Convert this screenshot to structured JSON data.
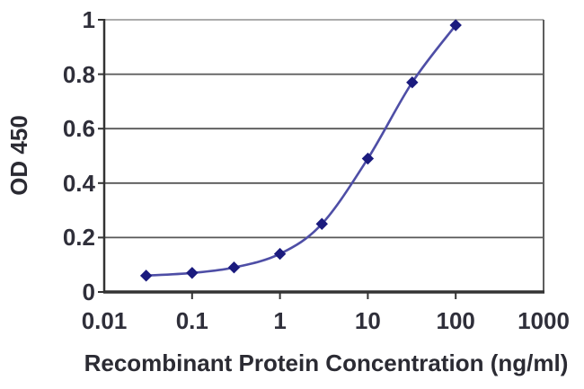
{
  "chart_data": {
    "type": "line",
    "title": "",
    "xlabel": "Recombinant Protein Concentration (ng/ml)",
    "ylabel": "OD 450",
    "x_scale": "log",
    "xlim": [
      0.01,
      1000
    ],
    "ylim": [
      0,
      1
    ],
    "x": [
      0.03,
      0.1,
      0.3,
      1,
      3,
      10,
      32,
      100
    ],
    "y": [
      0.06,
      0.07,
      0.09,
      0.14,
      0.25,
      0.49,
      0.77,
      0.98
    ],
    "xticks": [
      0.01,
      0.1,
      1,
      10,
      100,
      1000
    ],
    "xtick_labels": [
      "0.01",
      "0.1",
      "1",
      "10",
      "100",
      "1000"
    ],
    "yticks": [
      0,
      0.2,
      0.4,
      0.6,
      0.8,
      1
    ],
    "ytick_labels": [
      "0",
      "0.2",
      "0.4",
      "0.6",
      "0.8",
      "1"
    ],
    "grid": "horizontal",
    "legend": "none",
    "marker": "diamond",
    "colors": {
      "line": "#4e4ea6",
      "marker": "#1b1b7e",
      "gridline": "#575757",
      "axis": "#333333",
      "border_top": "#ababab",
      "border_right": "#5e5e5e",
      "tick": "#333333",
      "text": "#2f2f3a"
    }
  }
}
